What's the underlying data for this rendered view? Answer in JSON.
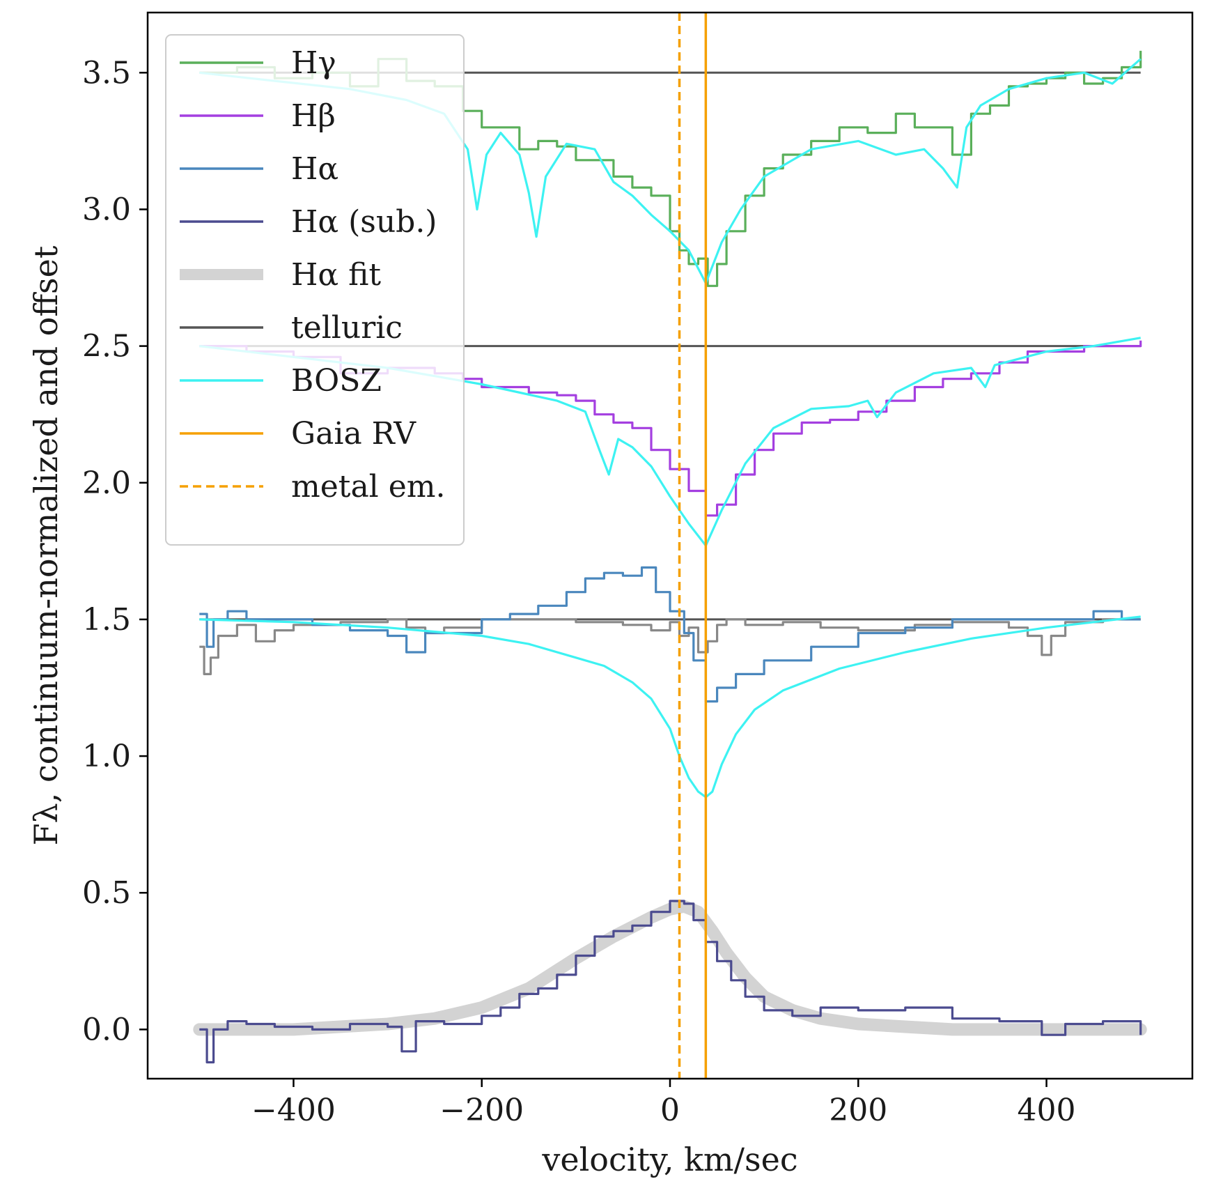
{
  "chart_data": {
    "type": "line",
    "title": "",
    "xlabel": "velocity, km/sec",
    "ylabel": "Fλ, continuum-normalized and offset",
    "xlim": [
      -555,
      555
    ],
    "ylim": [
      -0.18,
      3.72
    ],
    "xticks": [
      -400,
      -200,
      0,
      200,
      400
    ],
    "xtick_labels": [
      "−400",
      "−200",
      "0",
      "200",
      "400"
    ],
    "yticks": [
      0.0,
      0.5,
      1.0,
      1.5,
      2.0,
      2.5,
      3.0,
      3.5
    ],
    "ytick_labels": [
      "0.0",
      "0.5",
      "1.0",
      "1.5",
      "2.0",
      "2.5",
      "3.0",
      "3.5"
    ],
    "legend_position": "upper-left",
    "legend": [
      {
        "label": "Hγ",
        "color": "#5aaf5a",
        "style": "solid"
      },
      {
        "label": "Hβ",
        "color": "#a43fe0",
        "style": "solid"
      },
      {
        "label": "Hα",
        "color": "#4a87bd",
        "style": "solid"
      },
      {
        "label": "Hα (sub.)",
        "color": "#4b4b8f",
        "style": "solid"
      },
      {
        "label": "Hα fit",
        "color": "#d3d3d3",
        "style": "thick"
      },
      {
        "label": "telluric",
        "color": "#555555",
        "style": "solid"
      },
      {
        "label": "BOSZ",
        "color": "#3df2f2",
        "style": "solid"
      },
      {
        "label": "Gaia RV",
        "color": "#f5a000",
        "style": "solid"
      },
      {
        "label": "metal em.",
        "color": "#f5a000",
        "style": "dashed"
      }
    ],
    "hlines": [
      {
        "y": 3.5,
        "xmin": -500,
        "xmax": 500,
        "color": "#555555"
      },
      {
        "y": 2.5,
        "xmin": -500,
        "xmax": 500,
        "color": "#555555"
      },
      {
        "y": 1.5,
        "xmin": -500,
        "xmax": 500,
        "color": "#555555"
      }
    ],
    "vlines": [
      {
        "name": "Gaia RV",
        "x": 38,
        "color": "#f5a000",
        "style": "solid"
      },
      {
        "name": "metal em.",
        "x": 10,
        "color": "#f5a000",
        "style": "dashed"
      }
    ],
    "series": [
      {
        "name": "Hγ",
        "color": "#5aaf5a",
        "step": true,
        "x": [
          -500,
          -460,
          -420,
          -380,
          -340,
          -310,
          -280,
          -250,
          -220,
          -200,
          -180,
          -160,
          -140,
          -120,
          -100,
          -80,
          -60,
          -40,
          -20,
          0,
          10,
          20,
          30,
          40,
          50,
          60,
          80,
          100,
          120,
          150,
          180,
          210,
          240,
          260,
          280,
          300,
          320,
          340,
          360,
          380,
          400,
          420,
          440,
          460,
          480,
          500
        ],
        "y": [
          3.5,
          3.52,
          3.48,
          3.5,
          3.45,
          3.55,
          3.47,
          3.45,
          3.36,
          3.3,
          3.3,
          3.22,
          3.25,
          3.23,
          3.18,
          3.18,
          3.12,
          3.08,
          3.05,
          2.92,
          2.85,
          2.8,
          2.82,
          2.72,
          2.8,
          2.92,
          3.05,
          3.15,
          3.2,
          3.25,
          3.3,
          3.28,
          3.35,
          3.3,
          3.3,
          3.2,
          3.35,
          3.38,
          3.45,
          3.46,
          3.48,
          3.5,
          3.46,
          3.48,
          3.52,
          3.58
        ]
      },
      {
        "name": "BOSZ (Hγ)",
        "color": "#3df2f2",
        "step": false,
        "x": [
          -500,
          -420,
          -340,
          -280,
          -240,
          -215,
          -205,
          -195,
          -180,
          -160,
          -150,
          -142,
          -132,
          -110,
          -80,
          -60,
          -40,
          -20,
          0,
          20,
          38,
          55,
          75,
          100,
          150,
          200,
          240,
          270,
          290,
          305,
          315,
          330,
          360,
          400,
          440,
          470,
          500
        ],
        "y": [
          3.5,
          3.47,
          3.44,
          3.4,
          3.35,
          3.22,
          3.0,
          3.2,
          3.28,
          3.2,
          3.06,
          2.9,
          3.12,
          3.24,
          3.22,
          3.1,
          3.05,
          2.98,
          2.92,
          2.85,
          2.73,
          2.88,
          3.0,
          3.12,
          3.22,
          3.25,
          3.2,
          3.22,
          3.15,
          3.08,
          3.3,
          3.38,
          3.44,
          3.48,
          3.5,
          3.46,
          3.55
        ]
      },
      {
        "name": "Hβ",
        "color": "#a43fe0",
        "step": true,
        "x": [
          -500,
          -450,
          -400,
          -350,
          -300,
          -250,
          -220,
          -200,
          -180,
          -150,
          -120,
          -100,
          -80,
          -60,
          -40,
          -20,
          0,
          20,
          38,
          50,
          70,
          90,
          110,
          140,
          170,
          200,
          230,
          260,
          290,
          320,
          350,
          380,
          410,
          440,
          470,
          500
        ],
        "y": [
          2.5,
          2.48,
          2.46,
          2.4,
          2.42,
          2.4,
          2.38,
          2.35,
          2.35,
          2.33,
          2.32,
          2.3,
          2.25,
          2.22,
          2.2,
          2.12,
          2.05,
          1.97,
          1.88,
          1.92,
          2.03,
          2.12,
          2.18,
          2.22,
          2.23,
          2.26,
          2.3,
          2.35,
          2.38,
          2.4,
          2.44,
          2.48,
          2.48,
          2.5,
          2.5,
          2.52
        ]
      },
      {
        "name": "BOSZ (Hβ)",
        "color": "#3df2f2",
        "step": false,
        "x": [
          -500,
          -300,
          -200,
          -120,
          -90,
          -75,
          -65,
          -55,
          -40,
          -20,
          0,
          20,
          38,
          55,
          80,
          110,
          150,
          190,
          210,
          220,
          240,
          280,
          320,
          335,
          345,
          400,
          450,
          500
        ],
        "y": [
          2.5,
          2.42,
          2.36,
          2.3,
          2.26,
          2.12,
          2.03,
          2.16,
          2.13,
          2.06,
          1.95,
          1.85,
          1.77,
          1.9,
          2.07,
          2.2,
          2.27,
          2.28,
          2.3,
          2.24,
          2.33,
          2.4,
          2.42,
          2.35,
          2.43,
          2.48,
          2.5,
          2.53
        ]
      },
      {
        "name": "Hα",
        "color": "#4a87bd",
        "step": true,
        "x": [
          -500,
          -492,
          -485,
          -470,
          -450,
          -420,
          -380,
          -340,
          -300,
          -280,
          -260,
          -230,
          -200,
          -170,
          -140,
          -110,
          -90,
          -70,
          -50,
          -30,
          -15,
          0,
          15,
          25,
          38,
          50,
          70,
          100,
          150,
          200,
          250,
          300,
          350,
          400,
          450,
          480,
          500
        ],
        "y": [
          1.52,
          1.4,
          1.5,
          1.53,
          1.5,
          1.5,
          1.48,
          1.46,
          1.44,
          1.38,
          1.45,
          1.45,
          1.5,
          1.52,
          1.55,
          1.6,
          1.65,
          1.67,
          1.66,
          1.69,
          1.6,
          1.53,
          1.45,
          1.35,
          1.2,
          1.25,
          1.3,
          1.35,
          1.4,
          1.45,
          1.47,
          1.5,
          1.5,
          1.5,
          1.53,
          1.5,
          1.5
        ]
      },
      {
        "name": "BOSZ (Hα)",
        "color": "#3df2f2",
        "step": false,
        "x": [
          -500,
          -400,
          -300,
          -200,
          -150,
          -100,
          -70,
          -40,
          -20,
          0,
          10,
          20,
          30,
          38,
          45,
          55,
          70,
          90,
          120,
          180,
          250,
          320,
          400,
          450,
          500
        ],
        "y": [
          1.5,
          1.49,
          1.47,
          1.44,
          1.41,
          1.36,
          1.33,
          1.27,
          1.21,
          1.1,
          1.0,
          0.92,
          0.87,
          0.85,
          0.87,
          0.97,
          1.08,
          1.17,
          1.24,
          1.32,
          1.38,
          1.43,
          1.47,
          1.49,
          1.51
        ]
      },
      {
        "name": "telluric",
        "color": "#888888",
        "step": true,
        "x": [
          -500,
          -495,
          -488,
          -480,
          -460,
          -440,
          -420,
          -400,
          -350,
          -300,
          -280,
          -260,
          -240,
          -200,
          -150,
          -100,
          -50,
          -20,
          0,
          10,
          20,
          30,
          40,
          50,
          60,
          80,
          120,
          160,
          200,
          260,
          300,
          340,
          360,
          380,
          395,
          405,
          420,
          460,
          500
        ],
        "y": [
          1.4,
          1.3,
          1.36,
          1.44,
          1.48,
          1.42,
          1.46,
          1.48,
          1.49,
          1.5,
          1.47,
          1.45,
          1.47,
          1.5,
          1.5,
          1.49,
          1.48,
          1.46,
          1.49,
          1.44,
          1.47,
          1.38,
          1.42,
          1.48,
          1.5,
          1.48,
          1.49,
          1.47,
          1.46,
          1.48,
          1.49,
          1.49,
          1.47,
          1.44,
          1.37,
          1.44,
          1.49,
          1.5,
          1.5
        ]
      },
      {
        "name": "Hα fit",
        "color": "#d3d3d3",
        "step": false,
        "x": [
          -500,
          -400,
          -300,
          -250,
          -200,
          -150,
          -100,
          -60,
          -20,
          0,
          15,
          30,
          45,
          60,
          80,
          100,
          130,
          160,
          200,
          250,
          300,
          400,
          500
        ],
        "y": [
          0.0,
          0.0,
          0.02,
          0.04,
          0.08,
          0.15,
          0.26,
          0.34,
          0.41,
          0.44,
          0.45,
          0.43,
          0.36,
          0.28,
          0.19,
          0.12,
          0.07,
          0.04,
          0.02,
          0.01,
          0.0,
          0.0,
          0.0
        ]
      },
      {
        "name": "Hα (sub.)",
        "color": "#4b4b8f",
        "step": true,
        "x": [
          -500,
          -492,
          -485,
          -470,
          -450,
          -420,
          -380,
          -340,
          -300,
          -285,
          -270,
          -240,
          -200,
          -180,
          -160,
          -140,
          -120,
          -100,
          -80,
          -60,
          -40,
          -20,
          0,
          15,
          25,
          38,
          50,
          65,
          80,
          100,
          130,
          160,
          200,
          250,
          300,
          350,
          395,
          420,
          460,
          500
        ],
        "y": [
          0.0,
          -0.12,
          0.0,
          0.03,
          0.02,
          0.01,
          0.0,
          0.02,
          0.01,
          -0.08,
          0.03,
          0.02,
          0.05,
          0.08,
          0.13,
          0.15,
          0.2,
          0.27,
          0.34,
          0.36,
          0.38,
          0.43,
          0.47,
          0.46,
          0.4,
          0.32,
          0.25,
          0.18,
          0.12,
          0.07,
          0.05,
          0.08,
          0.07,
          0.08,
          0.04,
          0.03,
          -0.02,
          0.02,
          0.03,
          -0.02
        ]
      }
    ]
  }
}
